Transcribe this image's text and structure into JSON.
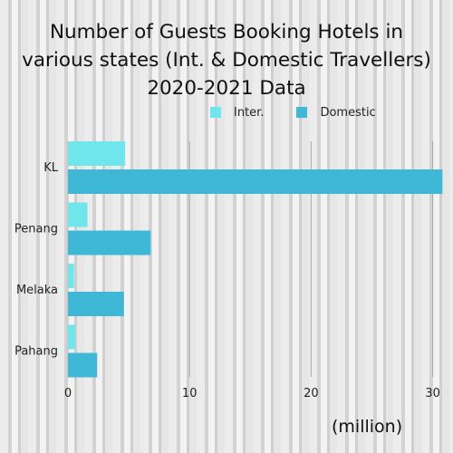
{
  "chart_data": {
    "type": "bar",
    "orientation": "horizontal",
    "title_lines": [
      "Number of Guests Booking Hotels in",
      "various states (Int. & Domestic Travellers)",
      "2020-2021 Data"
    ],
    "categories": [
      "KL",
      "Penang",
      "Melaka",
      "Pahang"
    ],
    "series": [
      {
        "name": "Inter.",
        "values": [
          4.7,
          1.6,
          0.5,
          0.6
        ],
        "color": "#6ee6ec"
      },
      {
        "name": "Domestic",
        "values": [
          30.8,
          6.8,
          4.6,
          2.4
        ],
        "color": "#3fb8d8"
      }
    ],
    "xticks": [
      "0",
      "10",
      "20",
      "30"
    ],
    "xlim": [
      0,
      30.8
    ],
    "unit_label": "(million)",
    "grid": "vertical",
    "legend_position": "top-right"
  }
}
